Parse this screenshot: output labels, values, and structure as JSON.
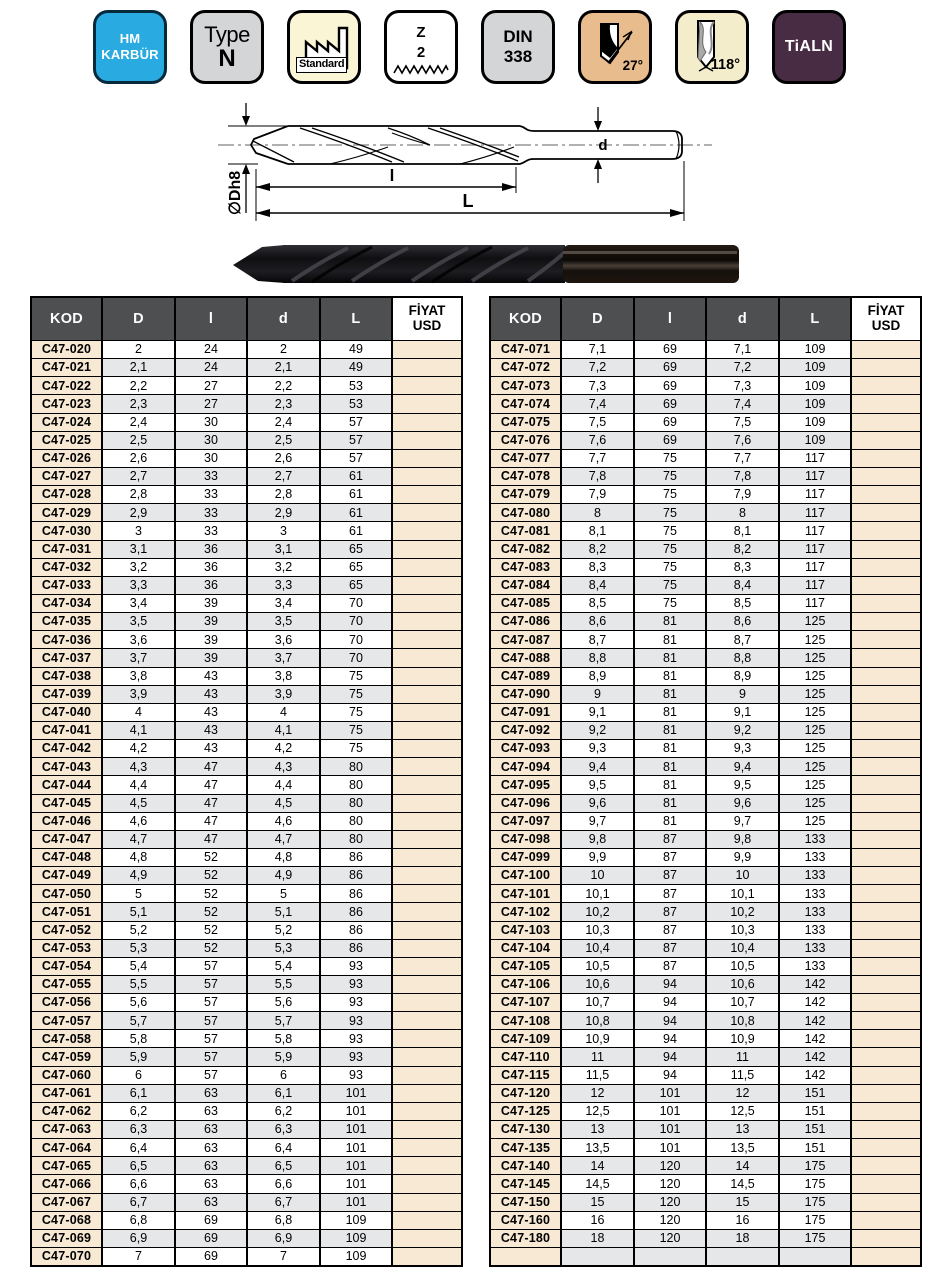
{
  "badges": [
    {
      "name": "hm-karbur",
      "lines": [
        "HM",
        "KARBÜR"
      ],
      "bg": "#29abe2",
      "fg": "#ffffff",
      "border": "#07293c"
    },
    {
      "name": "type-n",
      "lines": [
        "Type",
        "N"
      ],
      "bg": "#d4d5d7",
      "fg": "#000000",
      "border": "#000000"
    },
    {
      "name": "standard",
      "label": "Standard",
      "bg": "#faf6d5",
      "fg": "#000000",
      "border": "#000000",
      "icon": "factory-icon"
    },
    {
      "name": "z-2",
      "lines": [
        "Z",
        "2"
      ],
      "bg": "#ffffff",
      "fg": "#000000",
      "border": "#000000",
      "icon": "zigzag-icon"
    },
    {
      "name": "din-338",
      "lines": [
        "DIN",
        "338"
      ],
      "bg": "#d4d5d7",
      "fg": "#000000",
      "border": "#000000"
    },
    {
      "name": "helix-angle",
      "label": "27°",
      "bg": "#e9bc8e",
      "fg": "#000000",
      "border": "#000000",
      "icon": "drill-helix-icon"
    },
    {
      "name": "point-angle",
      "label": "118°",
      "bg": "#f3edcb",
      "fg": "#000000",
      "border": "#000000",
      "icon": "drill-point-icon"
    },
    {
      "name": "tialn-coating",
      "label": "TiALN",
      "bg": "#482c44",
      "fg": "#ffffff",
      "border": "#000000"
    }
  ],
  "diagram": {
    "labels": {
      "diameter": "∅Dh8",
      "flute_length": "l",
      "total_length": "L",
      "shank_diameter": "d"
    }
  },
  "columns": {
    "kod": "KOD",
    "D": "D",
    "l": "l",
    "d": "d",
    "L": "L",
    "price1": "FİYAT",
    "price2": "USD"
  },
  "colors": {
    "header-gray": "#4e4f51",
    "beige": "#f7e9d4",
    "stripe": "#e6e7e8",
    "accent-blue": "#29abe2"
  },
  "tables": [
    {
      "rows": [
        [
          "C47-020",
          "2",
          "24",
          "2",
          "49"
        ],
        [
          "C47-021",
          "2,1",
          "24",
          "2,1",
          "49"
        ],
        [
          "C47-022",
          "2,2",
          "27",
          "2,2",
          "53"
        ],
        [
          "C47-023",
          "2,3",
          "27",
          "2,3",
          "53"
        ],
        [
          "C47-024",
          "2,4",
          "30",
          "2,4",
          "57"
        ],
        [
          "C47-025",
          "2,5",
          "30",
          "2,5",
          "57"
        ],
        [
          "C47-026",
          "2,6",
          "30",
          "2,6",
          "57"
        ],
        [
          "C47-027",
          "2,7",
          "33",
          "2,7",
          "61"
        ],
        [
          "C47-028",
          "2,8",
          "33",
          "2,8",
          "61"
        ],
        [
          "C47-029",
          "2,9",
          "33",
          "2,9",
          "61"
        ],
        [
          "C47-030",
          "3",
          "33",
          "3",
          "61"
        ],
        [
          "C47-031",
          "3,1",
          "36",
          "3,1",
          "65"
        ],
        [
          "C47-032",
          "3,2",
          "36",
          "3,2",
          "65"
        ],
        [
          "C47-033",
          "3,3",
          "36",
          "3,3",
          "65"
        ],
        [
          "C47-034",
          "3,4",
          "39",
          "3,4",
          "70"
        ],
        [
          "C47-035",
          "3,5",
          "39",
          "3,5",
          "70"
        ],
        [
          "C47-036",
          "3,6",
          "39",
          "3,6",
          "70"
        ],
        [
          "C47-037",
          "3,7",
          "39",
          "3,7",
          "70"
        ],
        [
          "C47-038",
          "3,8",
          "43",
          "3,8",
          "75"
        ],
        [
          "C47-039",
          "3,9",
          "43",
          "3,9",
          "75"
        ],
        [
          "C47-040",
          "4",
          "43",
          "4",
          "75"
        ],
        [
          "C47-041",
          "4,1",
          "43",
          "4,1",
          "75"
        ],
        [
          "C47-042",
          "4,2",
          "43",
          "4,2",
          "75"
        ],
        [
          "C47-043",
          "4,3",
          "47",
          "4,3",
          "80"
        ],
        [
          "C47-044",
          "4,4",
          "47",
          "4,4",
          "80"
        ],
        [
          "C47-045",
          "4,5",
          "47",
          "4,5",
          "80"
        ],
        [
          "C47-046",
          "4,6",
          "47",
          "4,6",
          "80"
        ],
        [
          "C47-047",
          "4,7",
          "47",
          "4,7",
          "80"
        ],
        [
          "C47-048",
          "4,8",
          "52",
          "4,8",
          "86"
        ],
        [
          "C47-049",
          "4,9",
          "52",
          "4,9",
          "86"
        ],
        [
          "C47-050",
          "5",
          "52",
          "5",
          "86"
        ],
        [
          "C47-051",
          "5,1",
          "52",
          "5,1",
          "86"
        ],
        [
          "C47-052",
          "5,2",
          "52",
          "5,2",
          "86"
        ],
        [
          "C47-053",
          "5,3",
          "52",
          "5,3",
          "86"
        ],
        [
          "C47-054",
          "5,4",
          "57",
          "5,4",
          "93"
        ],
        [
          "C47-055",
          "5,5",
          "57",
          "5,5",
          "93"
        ],
        [
          "C47-056",
          "5,6",
          "57",
          "5,6",
          "93"
        ],
        [
          "C47-057",
          "5,7",
          "57",
          "5,7",
          "93"
        ],
        [
          "C47-058",
          "5,8",
          "57",
          "5,8",
          "93"
        ],
        [
          "C47-059",
          "5,9",
          "57",
          "5,9",
          "93"
        ],
        [
          "C47-060",
          "6",
          "57",
          "6",
          "93"
        ],
        [
          "C47-061",
          "6,1",
          "63",
          "6,1",
          "101"
        ],
        [
          "C47-062",
          "6,2",
          "63",
          "6,2",
          "101"
        ],
        [
          "C47-063",
          "6,3",
          "63",
          "6,3",
          "101"
        ],
        [
          "C47-064",
          "6,4",
          "63",
          "6,4",
          "101"
        ],
        [
          "C47-065",
          "6,5",
          "63",
          "6,5",
          "101"
        ],
        [
          "C47-066",
          "6,6",
          "63",
          "6,6",
          "101"
        ],
        [
          "C47-067",
          "6,7",
          "63",
          "6,7",
          "101"
        ],
        [
          "C47-068",
          "6,8",
          "69",
          "6,8",
          "109"
        ],
        [
          "C47-069",
          "6,9",
          "69",
          "6,9",
          "109"
        ],
        [
          "C47-070",
          "7",
          "69",
          "7",
          "109"
        ]
      ]
    },
    {
      "rows": [
        [
          "C47-071",
          "7,1",
          "69",
          "7,1",
          "109"
        ],
        [
          "C47-072",
          "7,2",
          "69",
          "7,2",
          "109"
        ],
        [
          "C47-073",
          "7,3",
          "69",
          "7,3",
          "109"
        ],
        [
          "C47-074",
          "7,4",
          "69",
          "7,4",
          "109"
        ],
        [
          "C47-075",
          "7,5",
          "69",
          "7,5",
          "109"
        ],
        [
          "C47-076",
          "7,6",
          "69",
          "7,6",
          "109"
        ],
        [
          "C47-077",
          "7,7",
          "75",
          "7,7",
          "117"
        ],
        [
          "C47-078",
          "7,8",
          "75",
          "7,8",
          "117"
        ],
        [
          "C47-079",
          "7,9",
          "75",
          "7,9",
          "117"
        ],
        [
          "C47-080",
          "8",
          "75",
          "8",
          "117"
        ],
        [
          "C47-081",
          "8,1",
          "75",
          "8,1",
          "117"
        ],
        [
          "C47-082",
          "8,2",
          "75",
          "8,2",
          "117"
        ],
        [
          "C47-083",
          "8,3",
          "75",
          "8,3",
          "117"
        ],
        [
          "C47-084",
          "8,4",
          "75",
          "8,4",
          "117"
        ],
        [
          "C47-085",
          "8,5",
          "75",
          "8,5",
          "117"
        ],
        [
          "C47-086",
          "8,6",
          "81",
          "8,6",
          "125"
        ],
        [
          "C47-087",
          "8,7",
          "81",
          "8,7",
          "125"
        ],
        [
          "C47-088",
          "8,8",
          "81",
          "8,8",
          "125"
        ],
        [
          "C47-089",
          "8,9",
          "81",
          "8,9",
          "125"
        ],
        [
          "C47-090",
          "9",
          "81",
          "9",
          "125"
        ],
        [
          "C47-091",
          "9,1",
          "81",
          "9,1",
          "125"
        ],
        [
          "C47-092",
          "9,2",
          "81",
          "9,2",
          "125"
        ],
        [
          "C47-093",
          "9,3",
          "81",
          "9,3",
          "125"
        ],
        [
          "C47-094",
          "9,4",
          "81",
          "9,4",
          "125"
        ],
        [
          "C47-095",
          "9,5",
          "81",
          "9,5",
          "125"
        ],
        [
          "C47-096",
          "9,6",
          "81",
          "9,6",
          "125"
        ],
        [
          "C47-097",
          "9,7",
          "81",
          "9,7",
          "125"
        ],
        [
          "C47-098",
          "9,8",
          "87",
          "9,8",
          "133"
        ],
        [
          "C47-099",
          "9,9",
          "87",
          "9,9",
          "133"
        ],
        [
          "C47-100",
          "10",
          "87",
          "10",
          "133"
        ],
        [
          "C47-101",
          "10,1",
          "87",
          "10,1",
          "133"
        ],
        [
          "C47-102",
          "10,2",
          "87",
          "10,2",
          "133"
        ],
        [
          "C47-103",
          "10,3",
          "87",
          "10,3",
          "133"
        ],
        [
          "C47-104",
          "10,4",
          "87",
          "10,4",
          "133"
        ],
        [
          "C47-105",
          "10,5",
          "87",
          "10,5",
          "133"
        ],
        [
          "C47-106",
          "10,6",
          "94",
          "10,6",
          "142"
        ],
        [
          "C47-107",
          "10,7",
          "94",
          "10,7",
          "142"
        ],
        [
          "C47-108",
          "10,8",
          "94",
          "10,8",
          "142"
        ],
        [
          "C47-109",
          "10,9",
          "94",
          "10,9",
          "142"
        ],
        [
          "C47-110",
          "11",
          "94",
          "11",
          "142"
        ],
        [
          "C47-115",
          "11,5",
          "94",
          "11,5",
          "142"
        ],
        [
          "C47-120",
          "12",
          "101",
          "12",
          "151"
        ],
        [
          "C47-125",
          "12,5",
          "101",
          "12,5",
          "151"
        ],
        [
          "C47-130",
          "13",
          "101",
          "13",
          "151"
        ],
        [
          "C47-135",
          "13,5",
          "101",
          "13,5",
          "151"
        ],
        [
          "C47-140",
          "14",
          "120",
          "14",
          "175"
        ],
        [
          "C47-145",
          "14,5",
          "120",
          "14,5",
          "175"
        ],
        [
          "C47-150",
          "15",
          "120",
          "15",
          "175"
        ],
        [
          "C47-160",
          "16",
          "120",
          "16",
          "175"
        ],
        [
          "C47-180",
          "18",
          "120",
          "18",
          "175"
        ],
        []
      ]
    }
  ]
}
